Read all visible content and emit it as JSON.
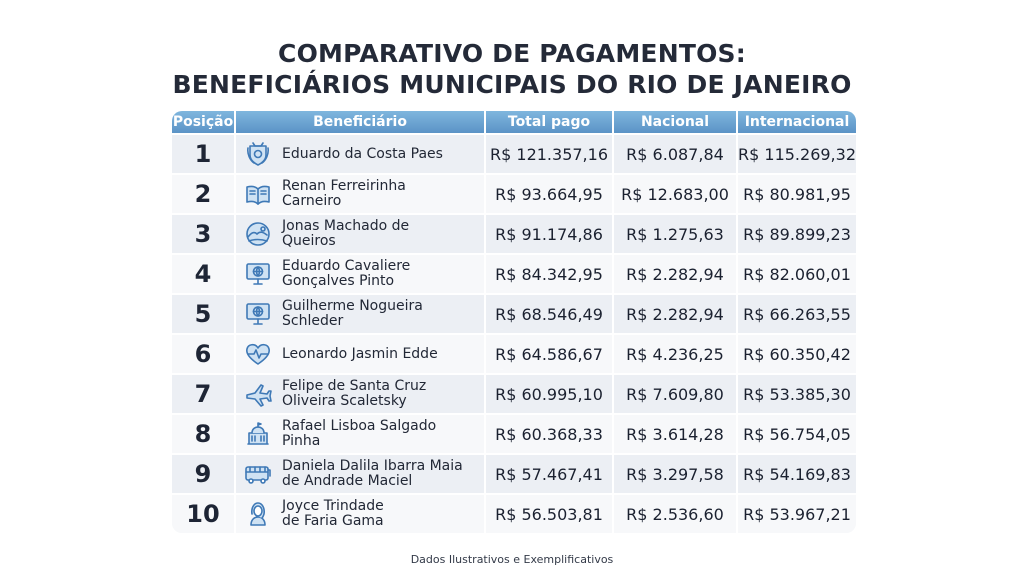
{
  "title_line1": "COMPARATIVO DE PAGAMENTOS:",
  "title_line2": "BENEFICIÁRIOS MUNICIPAIS DO RIO DE JANEIRO",
  "headers": {
    "position": "Posição",
    "beneficiary": "Beneficiário",
    "total": "Total pago",
    "national": "Nacional",
    "international": "Internacional"
  },
  "rows": [
    {
      "pos": "1",
      "name1": "Eduardo da Costa Paes",
      "name2": "",
      "icon": "city-seal-icon",
      "total": "R$ 121.357,16",
      "national": "R$ 6.087,84",
      "international": "R$ 115.269,32"
    },
    {
      "pos": "2",
      "name1": "Renan Ferreirinha",
      "name2": "Carneiro",
      "icon": "open-book-icon",
      "total": "R$ 93.664,95",
      "national": "R$ 12.683,00",
      "international": "R$ 80.981,95"
    },
    {
      "pos": "3",
      "name1": "Jonas Machado de",
      "name2": "Queiros",
      "icon": "landscape-icon",
      "total": "R$ 91.174,86",
      "national": "R$ 1.275,63",
      "international": "R$ 89.899,23"
    },
    {
      "pos": "4",
      "name1": "Eduardo Cavaliere",
      "name2": "Gonçalves Pinto",
      "icon": "monitor-globe-icon",
      "total": "R$ 84.342,95",
      "national": "R$ 2.282,94",
      "international": "R$ 82.060,01"
    },
    {
      "pos": "5",
      "name1": "Guilherme Nogueira",
      "name2": "Schleder",
      "icon": "monitor-globe-icon",
      "total": "R$ 68.546,49",
      "national": "R$ 2.282,94",
      "international": "R$ 66.263,55"
    },
    {
      "pos": "6",
      "name1": "Leonardo Jasmin Edde",
      "name2": "",
      "icon": "heart-pulse-icon",
      "total": "R$ 64.586,67",
      "national": "R$ 4.236,25",
      "international": "R$ 60.350,42"
    },
    {
      "pos": "7",
      "name1": "Felipe de Santa Cruz",
      "name2": "Oliveira Scaletsky",
      "icon": "airplane-icon",
      "total": "R$ 60.995,10",
      "national": "R$ 7.609,80",
      "international": "R$ 53.385,30"
    },
    {
      "pos": "8",
      "name1": "Rafael Lisboa Salgado",
      "name2": "Pinha",
      "icon": "government-building-icon",
      "total": "R$ 60.368,33",
      "national": "R$ 3.614,28",
      "international": "R$ 56.754,05"
    },
    {
      "pos": "9",
      "name1": "Daniela Dalila Ibarra Maia",
      "name2": "de Andrade Maciel",
      "icon": "bus-icon",
      "total": "R$ 57.467,41",
      "national": "R$ 3.297,58",
      "international": "R$ 54.169,83"
    },
    {
      "pos": "10",
      "name1": "Joyce Trindade",
      "name2": "de Faria Gama",
      "icon": "woman-avatar-icon",
      "total": "R$ 56.503,81",
      "national": "R$ 2.536,60",
      "international": "R$ 53.967,21"
    }
  ],
  "footer": "Dados Ilustrativos e Exemplificativos",
  "colors": {
    "header_gradient_top": "#7fb6de",
    "header_gradient_bottom": "#5b93c6",
    "icon_blue": "#3f79b6",
    "icon_fill": "#cfe2f3"
  }
}
